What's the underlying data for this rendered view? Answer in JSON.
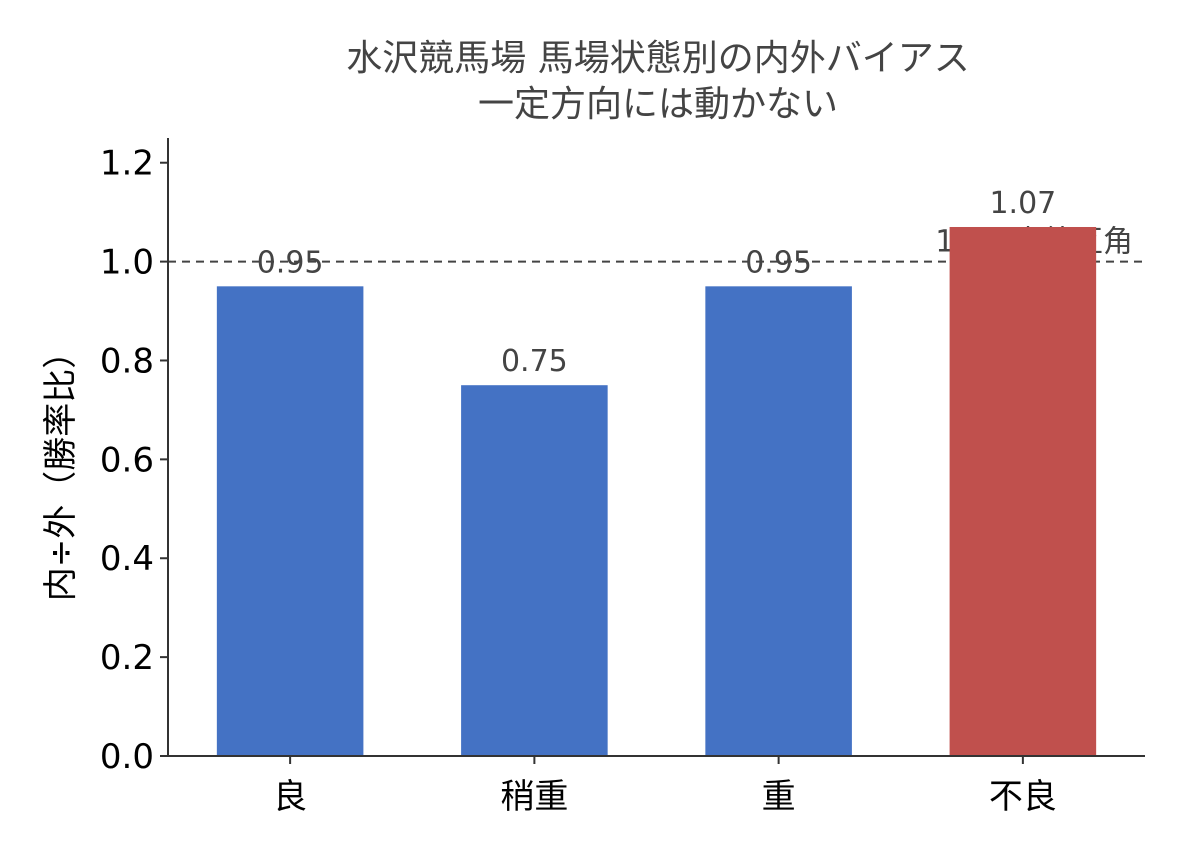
{
  "chart_data": {
    "type": "bar",
    "title": "水沢競馬場 馬場状態別の内外バイアス",
    "subtitle": "一定方向には動かない",
    "xlabel": "",
    "ylabel": "内÷外（勝率比）",
    "categories": [
      "良",
      "稍重",
      "重",
      "不良"
    ],
    "values": [
      0.95,
      0.75,
      0.95,
      1.07
    ],
    "value_labels": [
      "0.95",
      "0.75",
      "0.95",
      "1.07"
    ],
    "bar_colors": [
      "#4472c4",
      "#4472c4",
      "#4472c4",
      "#c0504d"
    ],
    "ylim": [
      0,
      1.25
    ],
    "yticks": [
      0.0,
      0.2,
      0.4,
      0.6,
      0.8,
      1.0,
      1.2
    ],
    "ytick_labels": [
      "0.0",
      "0.2",
      "0.4",
      "0.6",
      "0.8",
      "1.0",
      "1.2"
    ],
    "reference_line": {
      "value": 1.0,
      "label": "1.0＝内外互角",
      "style": "dashed",
      "color": "#444444"
    },
    "grid": false,
    "legend": "none"
  }
}
